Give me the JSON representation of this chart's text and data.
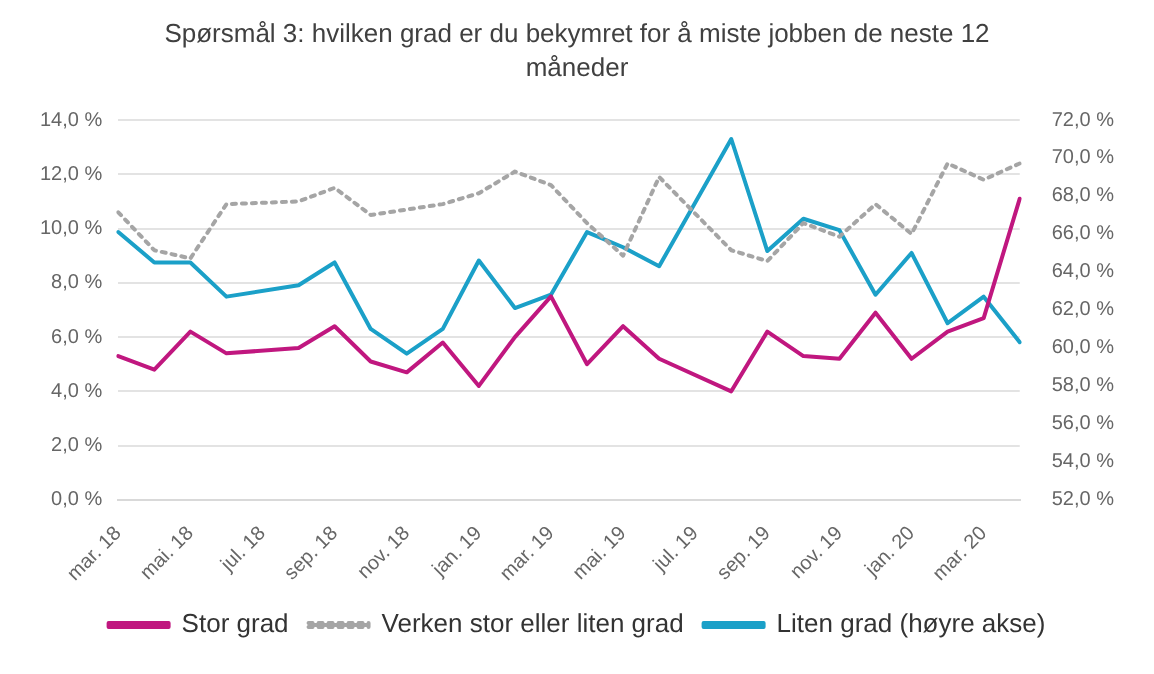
{
  "chart_data": {
    "type": "line",
    "title": "Spørsmål 3: hvilken grad er du bekymret for å miste jobben de neste 12 måneder",
    "categories": [
      "mar. 18",
      null,
      "mai. 18",
      null,
      "jul. 18",
      null,
      "sep. 18",
      null,
      "nov. 18",
      null,
      "jan. 19",
      null,
      "mar. 19",
      null,
      "mai. 19",
      null,
      "jul. 19",
      null,
      "sep. 19",
      null,
      "nov. 19",
      null,
      "jan. 20",
      null,
      "mar. 20",
      null
    ],
    "series": [
      {
        "name": "Stor grad",
        "color": "#c0177f",
        "line_style": "solid",
        "values": [
          5.3,
          4.8,
          6.2,
          5.4,
          null,
          5.6,
          6.4,
          5.1,
          4.7,
          5.8,
          4.2,
          6.0,
          7.5,
          5.0,
          6.4,
          5.2,
          null,
          4.0,
          6.2,
          5.3,
          5.2,
          6.9,
          5.2,
          6.2,
          6.7,
          11.1
        ]
      },
      {
        "name": "Verken stor eller liten grad",
        "color": "#a5a5a5",
        "line_style": "dotted",
        "values": [
          10.6,
          9.2,
          8.9,
          10.9,
          null,
          11.0,
          11.5,
          10.5,
          10.7,
          10.9,
          11.3,
          12.1,
          11.6,
          10.2,
          9.0,
          11.9,
          null,
          9.2,
          8.8,
          10.2,
          9.7,
          10.9,
          9.8,
          12.4,
          11.8,
          12.4
        ]
      },
      {
        "name": "Liten grad (høyre akse)",
        "color": "#1ba0c8",
        "line_style": "solid",
        "axis": "y2",
        "values": [
          66.1,
          64.5,
          64.5,
          62.7,
          null,
          63.3,
          64.5,
          61.0,
          59.7,
          61.0,
          64.6,
          62.1,
          62.8,
          66.1,
          65.3,
          64.3,
          null,
          71.0,
          65.1,
          66.8,
          66.2,
          62.8,
          65.0,
          61.3,
          62.7,
          60.3
        ]
      }
    ],
    "ylim": [
      0,
      14
    ],
    "yticks": [
      {
        "value": 0,
        "label": "0,0 %"
      },
      {
        "value": 2,
        "label": "2,0 %"
      },
      {
        "value": 4,
        "label": "4,0 %"
      },
      {
        "value": 6,
        "label": "6,0 %"
      },
      {
        "value": 8,
        "label": "8,0 %"
      },
      {
        "value": 10,
        "label": "10,0 %"
      },
      {
        "value": 12,
        "label": "12,0 %"
      },
      {
        "value": 14,
        "label": "14,0 %"
      }
    ],
    "y2lim": [
      52,
      72
    ],
    "y2ticks": [
      {
        "value": 52,
        "label": "52,0 %"
      },
      {
        "value": 54,
        "label": "54,0 %"
      },
      {
        "value": 56,
        "label": "56,0 %"
      },
      {
        "value": 58,
        "label": "58,0 %"
      },
      {
        "value": 60,
        "label": "60,0 %"
      },
      {
        "value": 62,
        "label": "62,0 %"
      },
      {
        "value": 64,
        "label": "64,0 %"
      },
      {
        "value": 66,
        "label": "66,0 %"
      },
      {
        "value": 68,
        "label": "68,0 %"
      },
      {
        "value": 70,
        "label": "70,0 %"
      },
      {
        "value": 72,
        "label": "72,0 %"
      }
    ],
    "grid": "y",
    "legend": "bottom",
    "marker": "none"
  }
}
